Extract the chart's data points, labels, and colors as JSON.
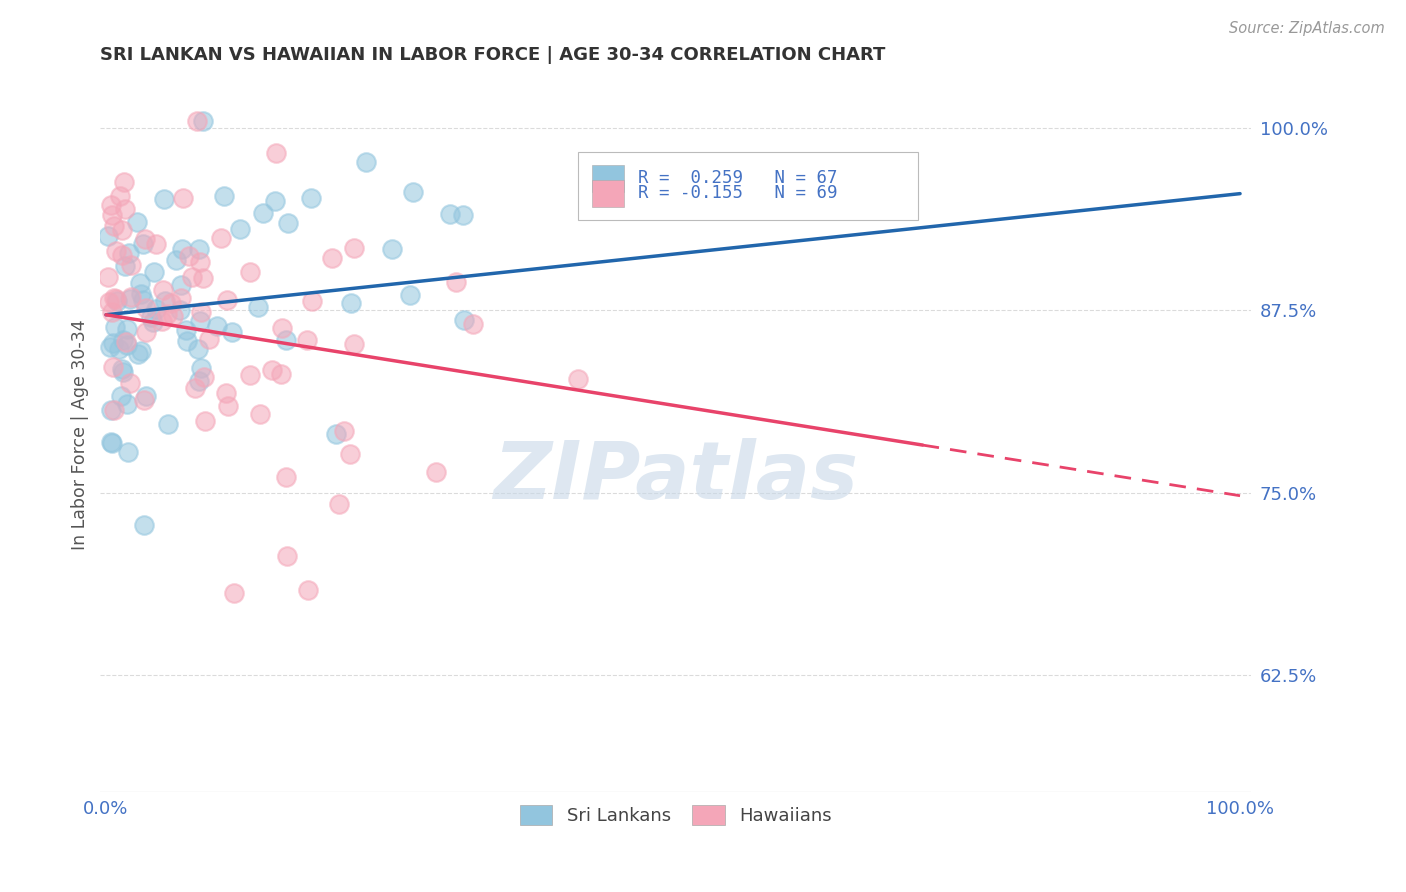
{
  "title": "SRI LANKAN VS HAWAIIAN IN LABOR FORCE | AGE 30-34 CORRELATION CHART",
  "source": "Source: ZipAtlas.com",
  "ylabel": "In Labor Force | Age 30-34",
  "sri_color": "#92c5de",
  "haw_color": "#f4a6b8",
  "trendline_sri_color": "#2166ac",
  "trendline_haw_color": "#e8436a",
  "watermark_color": "#c8d8e8",
  "background_color": "#ffffff",
  "grid_color": "#cccccc",
  "axis_color": "#4472c4",
  "title_color": "#333333",
  "legend_label_sri": "Sri Lankans",
  "legend_label_haw": "Hawaiians",
  "sri_trendline_start_y": 0.872,
  "sri_trendline_end_y": 0.955,
  "haw_trendline_start_y": 0.872,
  "haw_trendline_end_y": 0.748,
  "haw_trendline_solid_end_x": 0.72,
  "ylim_min": 0.545,
  "ylim_max": 1.035,
  "xlim_min": -0.005,
  "xlim_max": 1.01
}
